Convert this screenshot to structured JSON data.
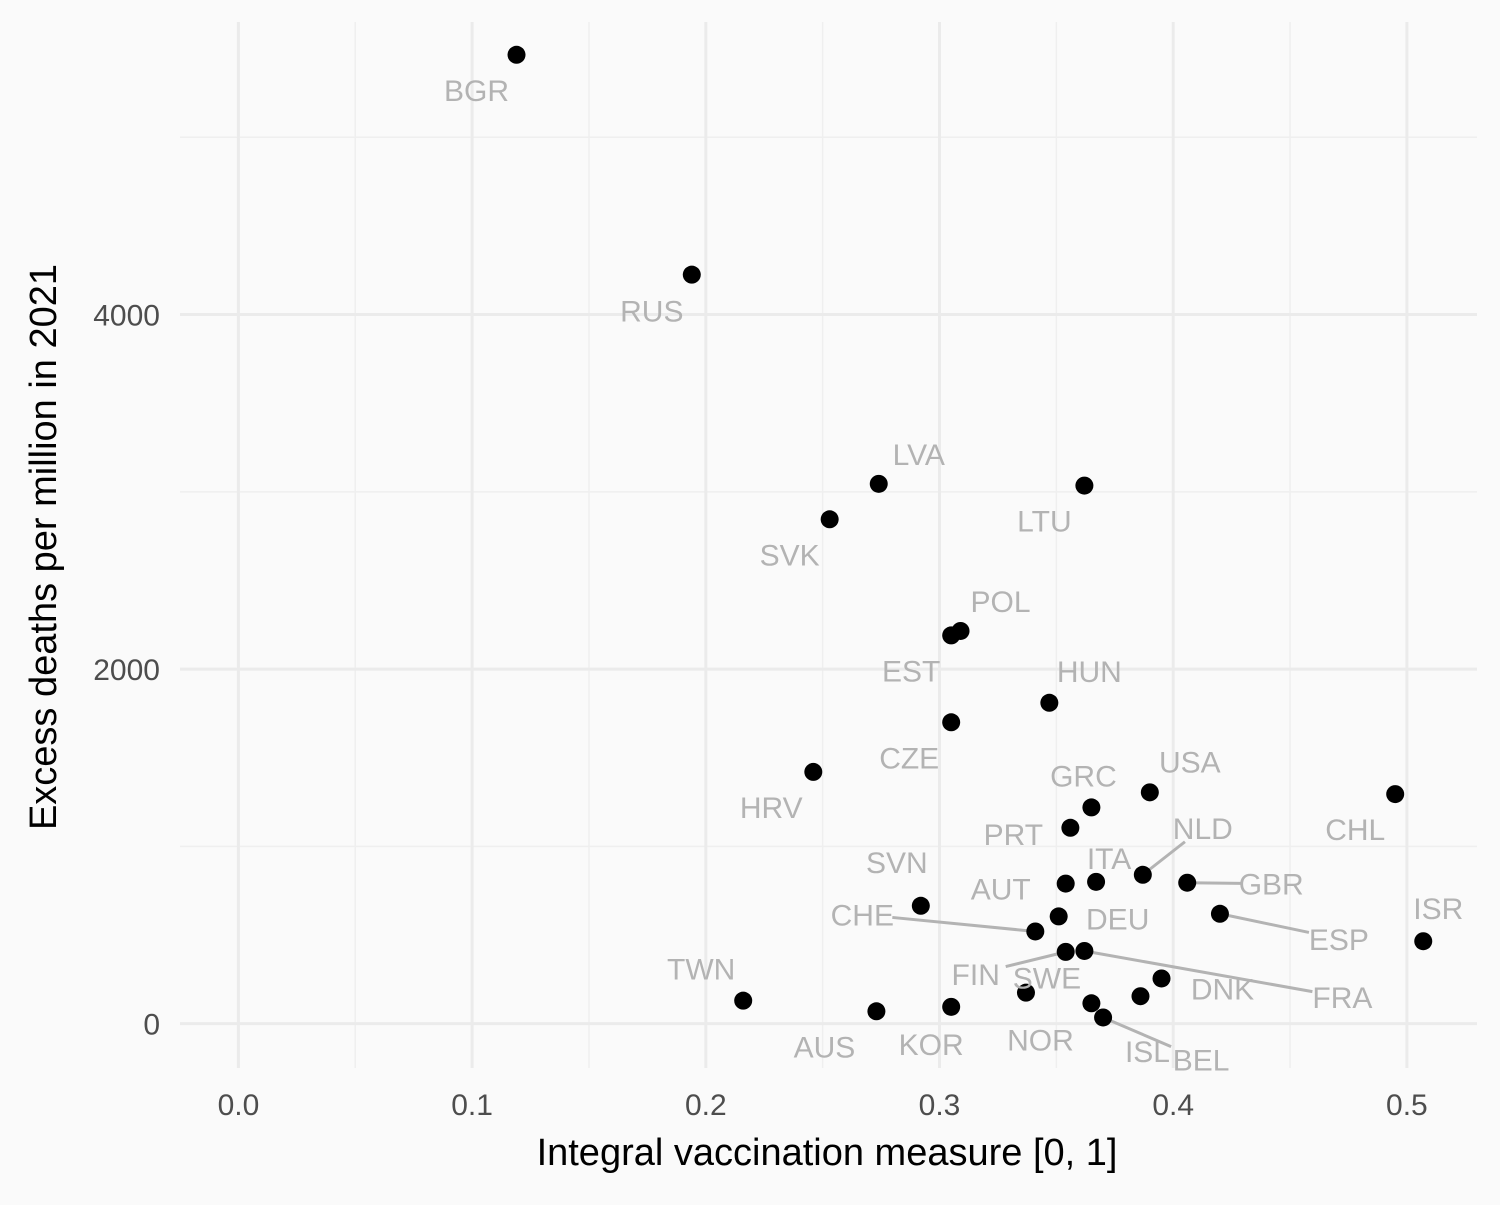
{
  "chart_data": {
    "type": "scatter",
    "xlabel": "Integral vaccination measure [0, 1]",
    "ylabel": "Excess deaths per million in 2021",
    "xlim": [
      -0.025,
      0.53
    ],
    "ylim": [
      -250,
      5650
    ],
    "x_ticks": [
      0.0,
      0.1,
      0.2,
      0.3,
      0.4,
      0.5
    ],
    "x_tick_labels": [
      "0.0",
      "0.1",
      "0.2",
      "0.3",
      "0.4",
      "0.5"
    ],
    "y_ticks": [
      0,
      2000,
      4000
    ],
    "y_tick_labels": [
      "0",
      "2000",
      "4000"
    ],
    "grid": true,
    "point_color": "#000000",
    "label_color": "#b3b3b3",
    "background": "#fafafa",
    "points": [
      {
        "label": "BGR",
        "x": 0.119,
        "y": 5465
      },
      {
        "label": "RUS",
        "x": 0.194,
        "y": 4225
      },
      {
        "label": "LVA",
        "x": 0.274,
        "y": 3045
      },
      {
        "label": "LTU",
        "x": 0.362,
        "y": 3035
      },
      {
        "label": "SVK",
        "x": 0.253,
        "y": 2845
      },
      {
        "label": "POL",
        "x": 0.309,
        "y": 2215
      },
      {
        "label": "EST",
        "x": 0.305,
        "y": 2190
      },
      {
        "label": "HUN",
        "x": 0.347,
        "y": 1810
      },
      {
        "label": "CZE",
        "x": 0.305,
        "y": 1700
      },
      {
        "label": "HRV",
        "x": 0.246,
        "y": 1420
      },
      {
        "label": "USA",
        "x": 0.39,
        "y": 1305
      },
      {
        "label": "CHL",
        "x": 0.495,
        "y": 1295
      },
      {
        "label": "GRC",
        "x": 0.365,
        "y": 1220
      },
      {
        "label": "PRT",
        "x": 0.356,
        "y": 1105
      },
      {
        "label": "NLD",
        "x": 0.387,
        "y": 840
      },
      {
        "label": "ITA",
        "x": 0.367,
        "y": 800
      },
      {
        "label": "AUT",
        "x": 0.354,
        "y": 790
      },
      {
        "label": "GBR",
        "x": 0.406,
        "y": 795
      },
      {
        "label": "SVN",
        "x": 0.292,
        "y": 665
      },
      {
        "label": "ESP",
        "x": 0.42,
        "y": 620
      },
      {
        "label": "DEU",
        "x": 0.351,
        "y": 605
      },
      {
        "label": "CHE",
        "x": 0.341,
        "y": 520
      },
      {
        "label": "ISR",
        "x": 0.507,
        "y": 465
      },
      {
        "label": "FRA",
        "x": 0.362,
        "y": 410
      },
      {
        "label": "FIN",
        "x": 0.354,
        "y": 405
      },
      {
        "label": "DNK",
        "x": 0.395,
        "y": 255
      },
      {
        "label": "SWE",
        "x": 0.337,
        "y": 175
      },
      {
        "label": "ISL",
        "x": 0.386,
        "y": 155
      },
      {
        "label": "TWN",
        "x": 0.216,
        "y": 130
      },
      {
        "label": "NOR",
        "x": 0.365,
        "y": 115
      },
      {
        "label": "KOR",
        "x": 0.305,
        "y": 95
      },
      {
        "label": "AUS",
        "x": 0.273,
        "y": 70
      },
      {
        "label": "BEL",
        "x": 0.37,
        "y": 35
      }
    ]
  }
}
